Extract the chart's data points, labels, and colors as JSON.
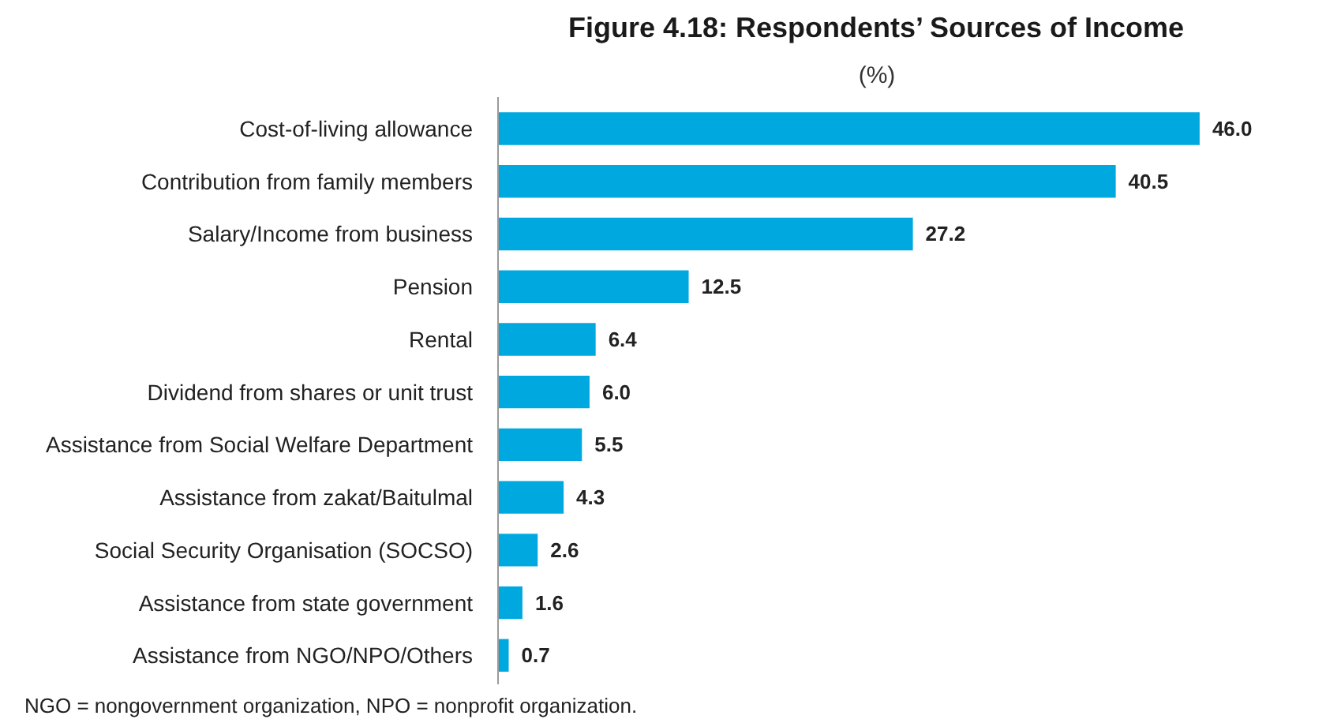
{
  "chart_data": {
    "type": "bar",
    "orientation": "horizontal",
    "title": "Figure 4.18: Respondents’ Sources of Income",
    "subtitle": "(%)",
    "categories": [
      "Cost-of-living allowance",
      "Contribution from family members",
      "Salary/Income from business",
      "Pension",
      "Rental",
      "Dividend from shares or unit trust",
      "Assistance from Social Welfare Department",
      "Assistance from zakat/Baitulmal",
      "Social Security Organisation (SOCSO)",
      "Assistance from state government",
      "Assistance from NGO/NPO/Others"
    ],
    "values": [
      46.0,
      40.5,
      27.2,
      12.5,
      6.4,
      6.0,
      5.5,
      4.3,
      2.6,
      1.6,
      0.7
    ],
    "value_labels": [
      "46.0",
      "40.5",
      "27.2",
      "12.5",
      "6.4",
      "6.0",
      "5.5",
      "4.3",
      "2.6",
      "1.6",
      "0.7"
    ],
    "color": "#00a8e0",
    "grid": false,
    "annotations": [
      "NGO = nongovernment organization, NPO = nonprofit organization."
    ]
  }
}
